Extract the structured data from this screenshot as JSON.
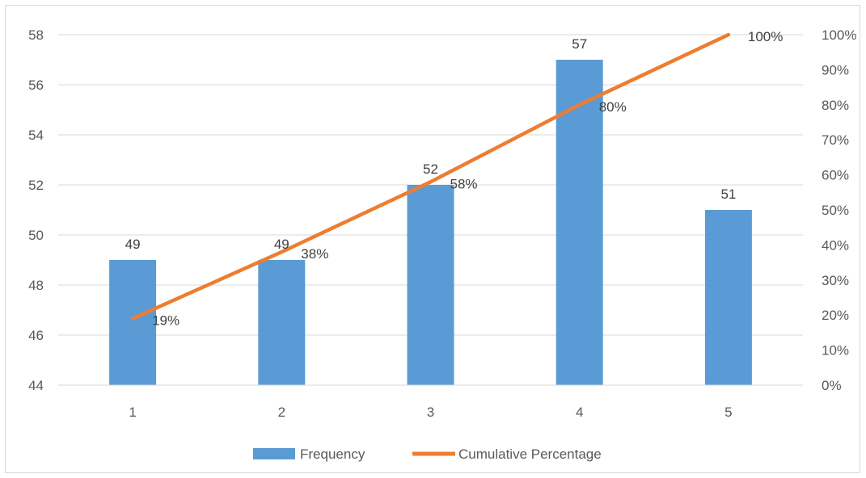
{
  "chart_data": {
    "type": "bar",
    "title": "",
    "xlabel": "",
    "ylabel": "",
    "categories": [
      "1",
      "2",
      "3",
      "4",
      "5"
    ],
    "ylim": [
      44,
      58
    ],
    "yticks": [
      44,
      46,
      48,
      50,
      52,
      54,
      56,
      58
    ],
    "y2lim": [
      0,
      100
    ],
    "y2ticks": [
      "0%",
      "10%",
      "20%",
      "30%",
      "40%",
      "50%",
      "60%",
      "70%",
      "80%",
      "90%",
      "100%"
    ],
    "grid": true,
    "legend_position": "bottom",
    "series": [
      {
        "name": "Frequency",
        "type": "bar",
        "axis": "primary",
        "color": "#5b9bd5",
        "values": [
          49,
          49,
          52,
          57,
          51
        ],
        "labels": [
          "49",
          "49",
          "52",
          "57",
          "51"
        ]
      },
      {
        "name": "Cumulative Percentage",
        "type": "line",
        "axis": "secondary",
        "color": "#ed7d31",
        "values": [
          19,
          38,
          58,
          80,
          100
        ],
        "labels": [
          "19%",
          "38%",
          "58%",
          "80%",
          "100%"
        ]
      }
    ]
  }
}
